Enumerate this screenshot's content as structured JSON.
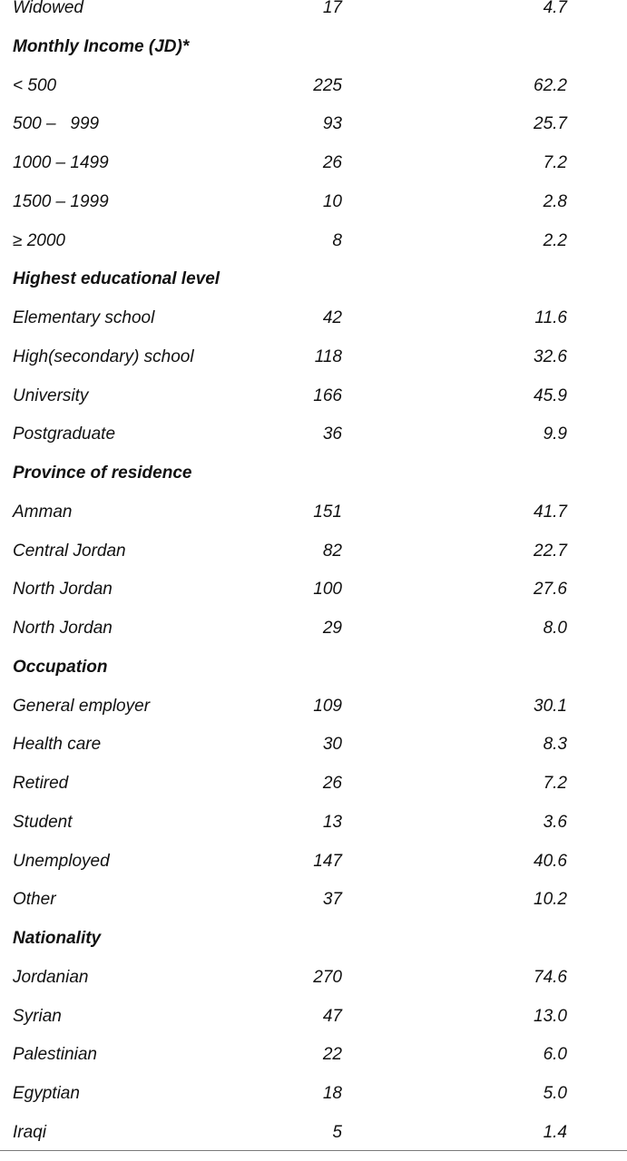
{
  "rows": [
    {
      "type": "data",
      "label": "Widowed",
      "n": "17",
      "pct": "4.7"
    },
    {
      "type": "heading",
      "label": "Monthly Income (JD)*"
    },
    {
      "type": "data",
      "label": "< 500",
      "n": "225",
      "pct": "62.2"
    },
    {
      "type": "data",
      "label": "500 –   999",
      "n": "93",
      "pct": "25.7"
    },
    {
      "type": "data",
      "label": "1000 – 1499",
      "n": "26",
      "pct": "7.2"
    },
    {
      "type": "data",
      "label": "1500 – 1999",
      "n": "10",
      "pct": "2.8"
    },
    {
      "type": "data",
      "label": "≥ 2000",
      "n": "8",
      "pct": "2.2"
    },
    {
      "type": "heading",
      "label": "Highest educational level"
    },
    {
      "type": "data",
      "label": "Elementary school",
      "n": "42",
      "pct": "11.6"
    },
    {
      "type": "data",
      "label": "High(secondary) school",
      "n": "118",
      "pct": "32.6"
    },
    {
      "type": "data",
      "label": "University",
      "n": "166",
      "pct": "45.9"
    },
    {
      "type": "data",
      "label": "Postgraduate",
      "n": "36",
      "pct": "9.9"
    },
    {
      "type": "heading",
      "label": "Province of residence"
    },
    {
      "type": "data",
      "label": "Amman",
      "n": "151",
      "pct": "41.7"
    },
    {
      "type": "data",
      "label": "Central Jordan",
      "n": "82",
      "pct": "22.7"
    },
    {
      "type": "data",
      "label": "North Jordan",
      "n": "100",
      "pct": "27.6"
    },
    {
      "type": "data",
      "label": "North Jordan",
      "n": "29",
      "pct": "8.0"
    },
    {
      "type": "heading",
      "label": "Occupation"
    },
    {
      "type": "data",
      "label": "General employer",
      "n": "109",
      "pct": "30.1"
    },
    {
      "type": "data",
      "label": "Health care",
      "n": "30",
      "pct": "8.3"
    },
    {
      "type": "data",
      "label": "Retired",
      "n": "26",
      "pct": "7.2"
    },
    {
      "type": "data",
      "label": "Student",
      "n": "13",
      "pct": "3.6"
    },
    {
      "type": "data",
      "label": "Unemployed",
      "n": "147",
      "pct": "40.6"
    },
    {
      "type": "data",
      "label": "Other",
      "n": "37",
      "pct": "10.2"
    },
    {
      "type": "heading",
      "label": "Nationality"
    },
    {
      "type": "data",
      "label": "Jordanian",
      "n": "270",
      "pct": "74.6"
    },
    {
      "type": "data",
      "label": "Syrian",
      "n": "47",
      "pct": "13.0"
    },
    {
      "type": "data",
      "label": "Palestinian",
      "n": "22",
      "pct": "6.0"
    },
    {
      "type": "data",
      "label": "Egyptian",
      "n": "18",
      "pct": "5.0"
    },
    {
      "type": "data",
      "label": "Iraqi",
      "n": "5",
      "pct": "1.4"
    }
  ]
}
